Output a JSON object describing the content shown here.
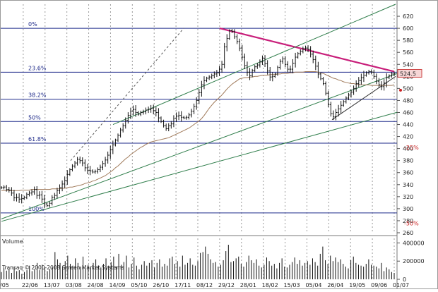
{
  "chart_data": [
    {
      "type": "bar",
      "title": "",
      "note": "OHLC price chart",
      "y_axis": {
        "min": 260,
        "max": 640,
        "ticks": [
          260,
          280,
          300,
          320,
          340,
          360,
          380,
          400,
          420,
          440,
          460,
          480,
          500,
          520,
          540,
          560,
          580,
          600,
          620
        ],
        "position": "right"
      },
      "x_tick_labels": [
        "/05",
        "22/06",
        "13/07",
        "03/08",
        "24/08",
        "14/09",
        "05/10",
        "26/10",
        "17/11",
        "08/12",
        "29/12",
        "28/01",
        "18/02",
        "15/03",
        "05/04",
        "26/04",
        "19/05",
        "09/06",
        "01/07"
      ],
      "last_price_label": "524.5",
      "fib_levels": [
        {
          "label": "0%",
          "value": 600
        },
        {
          "label": "23.6%",
          "value": 527
        },
        {
          "label": "38.2%",
          "value": 482
        },
        {
          "label": "50%",
          "value": 445
        },
        {
          "label": "61.8%",
          "value": 409
        },
        {
          "label": "100%",
          "value": 293
        }
      ],
      "percent_markers": [
        {
          "label": "-25%",
          "value": 402
        },
        {
          "label": "-50%",
          "value": 276
        }
      ],
      "series": [
        {
          "name": "",
          "values": [
            335,
            336,
            332,
            331,
            326,
            318,
            319,
            316,
            317,
            319,
            324,
            326,
            328,
            332,
            322,
            323,
            316,
            308,
            305,
            309,
            319,
            322,
            330,
            335,
            341,
            347,
            357,
            365,
            371,
            376,
            382,
            380,
            376,
            368,
            364,
            363,
            361,
            362,
            365,
            369,
            375,
            381,
            389,
            398,
            406,
            414,
            422,
            431,
            438,
            447,
            455,
            462,
            465,
            460,
            457,
            460,
            461,
            464,
            465,
            467,
            463,
            460,
            451,
            445,
            438,
            433,
            438,
            441,
            450,
            454,
            455,
            452,
            451,
            452,
            456,
            462,
            470,
            480,
            493,
            506,
            513,
            517,
            519,
            521,
            524,
            526,
            532,
            540,
            569,
            583,
            596,
            595,
            586,
            578,
            567,
            552,
            538,
            527,
            521,
            530,
            536,
            539,
            544,
            550,
            541,
            529,
            519,
            520,
            524,
            535,
            545,
            549,
            540,
            532,
            532,
            542,
            552,
            558,
            562,
            566,
            567,
            565,
            557,
            548,
            537,
            524,
            516,
            508,
            492,
            473,
            458,
            453,
            460,
            466,
            472,
            478,
            484,
            489,
            494,
            500,
            508,
            513,
            518,
            522,
            526,
            528,
            527,
            520,
            512,
            506,
            503,
            509,
            518,
            521,
            524,
            524.5
          ]
        },
        {
          "name": "",
          "values": [
            330,
            330,
            330,
            330,
            330,
            330,
            330,
            330,
            331,
            331,
            331,
            331,
            332,
            332,
            332,
            332,
            332,
            332,
            332,
            332,
            333,
            333,
            333,
            333,
            334,
            334,
            335,
            336,
            336,
            337,
            338,
            339,
            340,
            342,
            343,
            344,
            346,
            347,
            349,
            351,
            353,
            355,
            358,
            361,
            364,
            368,
            371,
            375,
            379,
            383,
            386,
            390,
            393,
            396,
            399,
            402,
            404,
            407,
            409,
            411,
            412,
            413,
            414,
            415,
            416,
            417,
            418,
            420,
            422,
            424,
            426,
            428,
            430,
            432,
            434,
            437,
            440,
            443,
            446,
            450,
            455,
            461,
            467,
            472,
            477,
            481,
            485,
            489,
            494,
            499,
            503,
            507,
            510,
            513,
            516,
            517,
            518,
            518,
            519,
            519,
            520,
            520,
            521,
            522,
            522,
            522,
            523,
            523,
            523,
            524,
            524,
            525,
            525,
            525,
            526,
            526,
            527,
            527,
            527,
            527,
            528,
            528,
            528,
            528,
            528,
            527,
            526,
            525,
            523,
            521,
            519,
            517,
            516,
            514,
            513,
            511,
            510,
            509,
            508,
            508,
            507,
            507,
            506,
            506,
            506,
            506,
            505,
            505,
            505,
            505,
            505,
            505,
            505,
            505,
            505,
            506
          ]
        }
      ],
      "trendlines": [
        {
          "name": "",
          "points": [
            [
              "/05",
              283
            ],
            [
              "01/07",
              523
            ]
          ]
        },
        {
          "name": "",
          "points": [
            [
              "/05",
              279
            ],
            [
              "01/07",
              459
            ]
          ]
        },
        {
          "name": "",
          "points": [
            [
              "29/12",
              600
            ],
            [
              "01/07",
              528
            ]
          ]
        }
      ]
    },
    {
      "type": "bar",
      "title": "Volume",
      "copyright": "Transaq © 2000-2008 Screen Market Systems",
      "y_axis": {
        "min": 0,
        "max": 450000,
        "ticks": [
          0,
          200000,
          400000
        ],
        "position": "right"
      },
      "values": [
        80000,
        120000,
        95000,
        110000,
        70000,
        130000,
        90000,
        100000,
        60000,
        80000,
        100000,
        150000,
        90000,
        110000,
        180000,
        100000,
        160000,
        120000,
        90000,
        110000,
        130000,
        300000,
        220000,
        180000,
        140000,
        200000,
        260000,
        170000,
        150000,
        230000,
        180000,
        140000,
        250000,
        120000,
        160000,
        130000,
        180000,
        220000,
        150000,
        130000,
        170000,
        230000,
        150000,
        190000,
        250000,
        140000,
        280000,
        160000,
        190000,
        260000,
        130000,
        170000,
        240000,
        150000,
        110000,
        160000,
        200000,
        150000,
        180000,
        210000,
        130000,
        180000,
        220000,
        140000,
        170000,
        150000,
        230000,
        250000,
        170000,
        200000,
        140000,
        260000,
        160000,
        180000,
        230000,
        160000,
        150000,
        200000,
        290000,
        300000,
        360000,
        280000,
        220000,
        180000,
        190000,
        140000,
        160000,
        210000,
        310000,
        380000,
        190000,
        200000,
        230000,
        250000,
        170000,
        140000,
        190000,
        260000,
        210000,
        180000,
        220000,
        150000,
        130000,
        160000,
        240000,
        200000,
        150000,
        170000,
        120000,
        180000,
        230000,
        140000,
        130000,
        160000,
        190000,
        240000,
        170000,
        210000,
        150000,
        180000,
        200000,
        160000,
        230000,
        190000,
        150000,
        280000,
        360000,
        210000,
        170000,
        260000,
        200000,
        240000,
        190000,
        220000,
        170000,
        140000,
        120000,
        210000,
        250000,
        180000,
        160000,
        150000,
        140000,
        170000,
        220000,
        160000,
        150000,
        140000,
        120000,
        180000,
        90000,
        130000,
        110000,
        80000,
        70000
      ]
    }
  ]
}
